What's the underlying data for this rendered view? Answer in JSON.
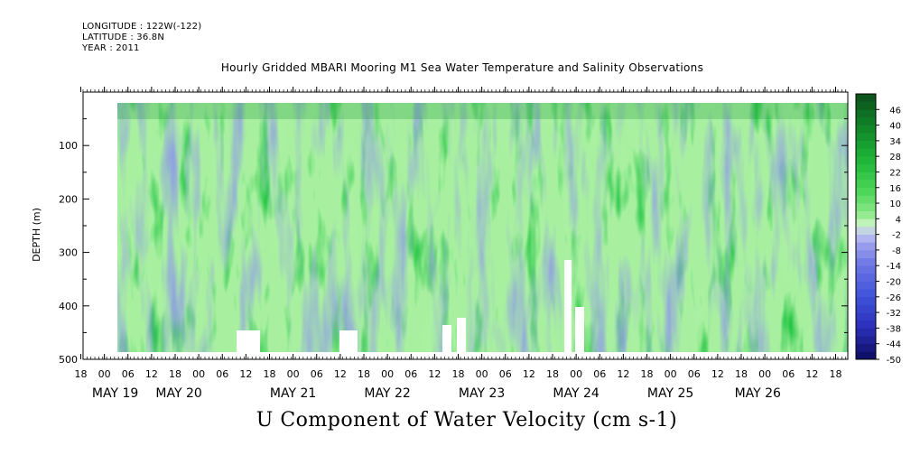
{
  "header": {
    "longitude": "LONGITUDE : 122W(-122)",
    "latitude": "LATITUDE : 36.8N",
    "year": "YEAR : 2011"
  },
  "chart_data": {
    "type": "heatmap",
    "title": "Hourly Gridded MBARI Mooring M1 Sea Water Temperature and Salinity Observations",
    "xlabel": "U Component of Water Velocity (cm s-1)",
    "ylabel": "DEPTH (m)",
    "ylim": [
      500,
      0
    ],
    "yticks": [
      100,
      200,
      300,
      400,
      500
    ],
    "x_hour_ticks": [
      "18",
      "00",
      "06",
      "12",
      "18",
      "00",
      "06",
      "12",
      "18",
      "00",
      "06",
      "12",
      "18",
      "00",
      "06",
      "12",
      "18",
      "00",
      "06",
      "12",
      "18",
      "00",
      "06",
      "12",
      "18",
      "00",
      "06",
      "12",
      "18",
      "00",
      "06",
      "12",
      "18"
    ],
    "x_date_labels": [
      "MAY 19",
      "MAY 20",
      "MAY 21",
      "MAY 22",
      "MAY 23",
      "MAY 24",
      "MAY 25",
      "MAY 26"
    ],
    "colorbar": {
      "labels": [
        "46",
        "40",
        "34",
        "28",
        "22",
        "16",
        "10",
        "4",
        "-2",
        "-8",
        "-14",
        "-20",
        "-26",
        "-32",
        "-38",
        "-44",
        "-50"
      ],
      "range": [
        -50,
        52
      ]
    },
    "colors": {
      "strong_positive": "#0a8a2a",
      "positive": "#22c744",
      "weak_positive": "#a8f0a0",
      "weak_negative": "#a3a8f2",
      "negative": "#7b86ea"
    }
  }
}
